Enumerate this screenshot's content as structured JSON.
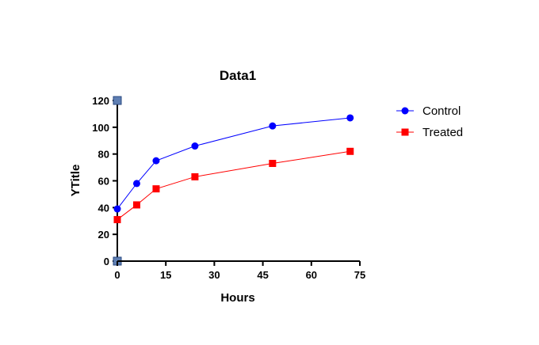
{
  "chart_data": {
    "type": "line",
    "title": "Data1",
    "xlabel": "Hours",
    "ylabel": "YTitle",
    "xlim": [
      0,
      75
    ],
    "ylim": [
      0,
      120
    ],
    "xticks": [
      0,
      15,
      30,
      45,
      60,
      75
    ],
    "yticks": [
      0,
      20,
      40,
      60,
      80,
      100,
      120
    ],
    "grid": false,
    "legend_position": "right",
    "series": [
      {
        "name": "Control",
        "color": "#0000ff",
        "marker": "circle",
        "x": [
          0,
          6,
          12,
          24,
          48,
          72
        ],
        "y": [
          39,
          58,
          75,
          86,
          101,
          107
        ]
      },
      {
        "name": "Treated",
        "color": "#ff0000",
        "marker": "square",
        "x": [
          0,
          6,
          12,
          24,
          48,
          72
        ],
        "y": [
          31,
          42,
          54,
          63,
          73,
          82
        ]
      }
    ]
  }
}
